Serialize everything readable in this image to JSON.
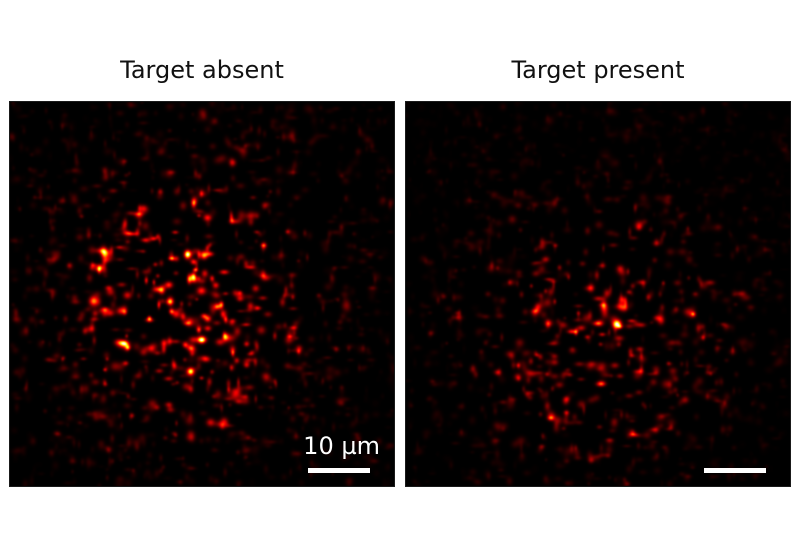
{
  "panels": [
    {
      "title": "Target absent",
      "scale_label": "10 µm",
      "scale_bar_microns": 10
    },
    {
      "title": "Target present",
      "scale_label": "",
      "scale_bar_microns": 10
    }
  ],
  "colormap": "hot"
}
